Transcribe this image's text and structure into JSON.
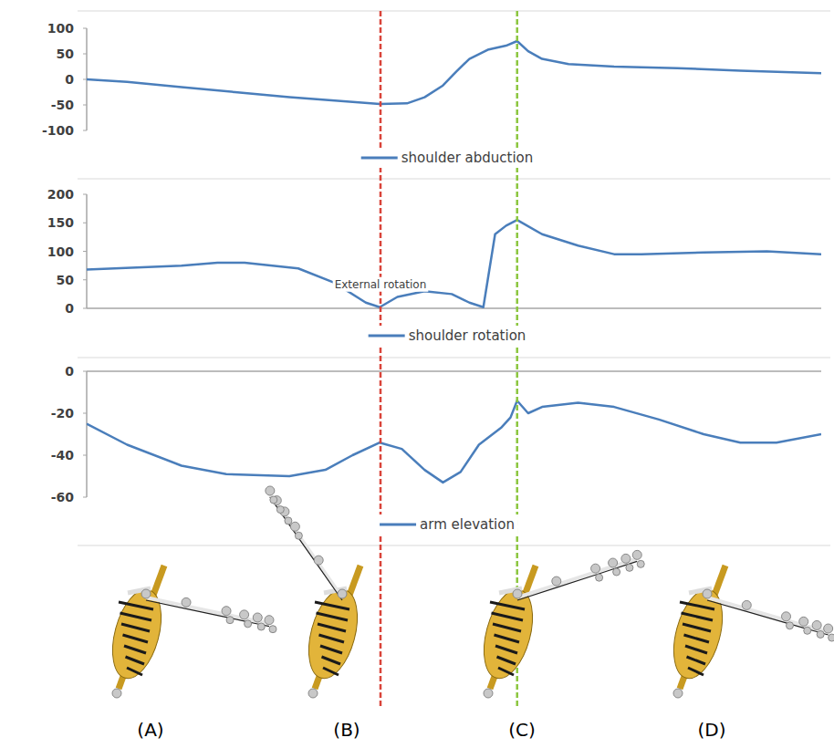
{
  "chart_data": [
    {
      "type": "line",
      "xlim": [
        0,
        100
      ],
      "ylim": [
        -100,
        100
      ],
      "yticks": [
        -100,
        -50,
        0,
        50,
        100
      ],
      "tick_labels": "y",
      "legend": "bottom",
      "x": [
        0,
        5.5,
        12.9,
        20.2,
        27.6,
        35,
        39.9,
        43.6,
        46,
        48.5,
        50.3,
        52.1,
        54.6,
        57.1,
        58.6,
        60.1,
        62,
        65.6,
        71.8,
        80.4,
        89,
        100
      ],
      "series": [
        {
          "name": "shoulder abduction",
          "color": "#4a7ebb",
          "values": [
            0,
            -5,
            -15,
            -25,
            -35,
            -43,
            -48,
            -47,
            -35,
            -12,
            15,
            40,
            58,
            66,
            75,
            55,
            40,
            30,
            25,
            22,
            17,
            12
          ]
        }
      ]
    },
    {
      "type": "line",
      "xlim": [
        0,
        100
      ],
      "ylim": [
        0,
        200
      ],
      "yticks": [
        0,
        50,
        100,
        150,
        200
      ],
      "tick_labels": "y",
      "legend": "bottom",
      "x": [
        0,
        12.9,
        17.8,
        21.5,
        28.8,
        33.7,
        38,
        39.9,
        42.3,
        46,
        49.7,
        52.1,
        54,
        54.6,
        55.6,
        57.1,
        58.6,
        62,
        66.9,
        71.8,
        75.5,
        84,
        92.6,
        100
      ],
      "series": [
        {
          "name": "shoulder rotation",
          "color": "#4a7ebb",
          "values": [
            68,
            75,
            80,
            80,
            70,
            45,
            10,
            2,
            20,
            30,
            25,
            10,
            2,
            50,
            130,
            145,
            155,
            130,
            110,
            95,
            95,
            98,
            100,
            95
          ]
        }
      ],
      "annotations": [
        {
          "text": "External rotation",
          "x": 40,
          "y": 42
        }
      ]
    },
    {
      "type": "line",
      "xlim": [
        0,
        100
      ],
      "ylim": [
        -60,
        0
      ],
      "yticks": [
        -60,
        -40,
        -20,
        0
      ],
      "tick_labels": "y",
      "legend": "bottom",
      "x": [
        0,
        5.5,
        12.9,
        19,
        27.6,
        32.5,
        36.2,
        39.9,
        42.9,
        46,
        48.5,
        50.9,
        53.4,
        56.4,
        57.7,
        58.6,
        60.1,
        62,
        66.9,
        71.8,
        77.9,
        84,
        89,
        93.9,
        100
      ],
      "series": [
        {
          "name": "arm elevation",
          "color": "#4a7ebb",
          "values": [
            -25,
            -35,
            -45,
            -49,
            -50,
            -47,
            -40,
            -34,
            -37,
            -47,
            -53,
            -48,
            -35,
            -27,
            -22,
            -14,
            -20,
            -17,
            -15,
            -17,
            -23,
            -30,
            -34,
            -34,
            -30
          ]
        }
      ]
    }
  ],
  "markers": [
    {
      "x": 40,
      "color": "#d9443a",
      "line_style": "dashed"
    },
    {
      "x": 58.6,
      "color": "#8cc63f",
      "line_style": "dashed"
    }
  ],
  "poses": [
    {
      "label": "(A)"
    },
    {
      "label": "(B)"
    },
    {
      "label": "(C)"
    },
    {
      "label": "(D)"
    }
  ]
}
